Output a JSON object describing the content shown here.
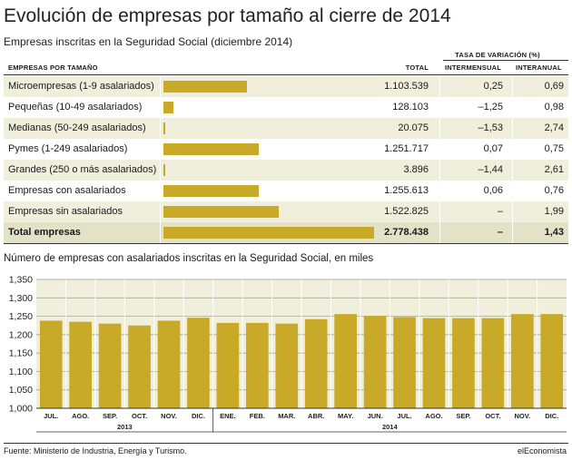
{
  "title": "Evolución de empresas por tamaño al cierre de 2014",
  "subtitle": "Empresas inscritas en la Seguridad Social (diciembre 2014)",
  "table": {
    "group_header": "TASA DE VARIACIÓN (%)",
    "col_label": "EMPRESAS POR TAMAÑO",
    "col_total": "TOTAL",
    "col_intermensual": "INTERMENSUAL",
    "col_interanual": "INTERANUAL",
    "bar_color": "#c8aa28",
    "rows": [
      {
        "label": "Microempresas (1-9 asalariados)",
        "total": "1.103.539",
        "total_value": 1103539,
        "intermensual": "0,25",
        "interanual": "0,69"
      },
      {
        "label": "Pequeñas (10-49 asalariados)",
        "total": "128.103",
        "total_value": 128103,
        "intermensual": "–1,25",
        "interanual": "0,98"
      },
      {
        "label": "Medianas (50-249 asalariados)",
        "total": "20.075",
        "total_value": 20075,
        "intermensual": "–1,53",
        "interanual": "2,74"
      },
      {
        "label": "Pymes (1-249 asalariados)",
        "total": "1.251.717",
        "total_value": 1251717,
        "intermensual": "0,07",
        "interanual": "0,75"
      },
      {
        "label": "Grandes (250 o más asalariados)",
        "total": "3.896",
        "total_value": 3896,
        "intermensual": "–1,44",
        "interanual": "2,61"
      },
      {
        "label": "Empresas con asalariados",
        "total": "1.255.613",
        "total_value": 1255613,
        "intermensual": "0,06",
        "interanual": "0,76"
      },
      {
        "label": "Empresas sin asalariados",
        "total": "1.522.825",
        "total_value": 1522825,
        "intermensual": "–",
        "interanual": "1,99"
      },
      {
        "label": "Total empresas",
        "total": "2.778.438",
        "total_value": 2778438,
        "intermensual": "–",
        "interanual": "1,43"
      }
    ]
  },
  "chart_title": "Número de empresas con asalariados inscritas en la Seguridad Social, en miles",
  "chart_data": {
    "type": "bar",
    "title": "Número de empresas con asalariados inscritas en la Seguridad Social, en miles",
    "categories": [
      "JUL.",
      "AGO.",
      "SEP.",
      "OCT.",
      "NOV.",
      "DIC.",
      "ENE.",
      "FEB.",
      "MAR.",
      "ABR.",
      "MAY.",
      "JUN.",
      "JUL.",
      "AGO.",
      "SEP.",
      "OCT.",
      "NOV.",
      "DIC."
    ],
    "year_groups": [
      {
        "label": "2013",
        "count": 6
      },
      {
        "label": "2014",
        "count": 12
      }
    ],
    "values": [
      1238,
      1235,
      1230,
      1225,
      1238,
      1246,
      1232,
      1232,
      1230,
      1242,
      1256,
      1251,
      1248,
      1245,
      1245,
      1245,
      1256,
      1256
    ],
    "ylim": [
      1000,
      1350
    ],
    "yticks": [
      1000,
      1050,
      1100,
      1150,
      1200,
      1250,
      1300,
      1350
    ],
    "ytick_labels": [
      "1,000",
      "1,050",
      "1,100",
      "1,150",
      "1,200",
      "1,250",
      "1,300",
      "1,350"
    ],
    "grid": true,
    "bar_color": "#c8aa28",
    "background_color": "#efefdc"
  },
  "source": "Fuente: Ministerio de Industria, Energía y Turismo.",
  "brand": "elEconomista"
}
